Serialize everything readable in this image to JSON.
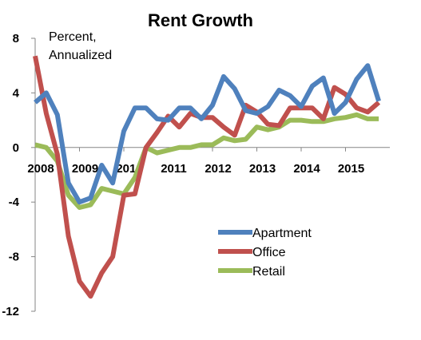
{
  "chart_data": {
    "type": "line",
    "title": "Rent Growth",
    "annotation": [
      "Percent,",
      "Annualized"
    ],
    "xlabel": "",
    "ylabel": "",
    "ylim": [
      -12,
      8
    ],
    "yticks": [
      8,
      4,
      0,
      -4,
      -8,
      -12
    ],
    "xlim": [
      2008,
      2016
    ],
    "xticks": [
      2008,
      2009,
      2010,
      2011,
      2012,
      2013,
      2014,
      2015
    ],
    "legend_position": "bottom-center",
    "grid": false,
    "series": [
      {
        "name": "Apartment",
        "color": "#4F81BD",
        "x": [
          2008.0,
          2008.25,
          2008.5,
          2008.75,
          2009.0,
          2009.25,
          2009.5,
          2009.75,
          2010.0,
          2010.25,
          2010.5,
          2010.75,
          2011.0,
          2011.25,
          2011.5,
          2011.75,
          2012.0,
          2012.25,
          2012.5,
          2012.75,
          2013.0,
          2013.25,
          2013.5,
          2013.75,
          2014.0,
          2014.25,
          2014.5,
          2014.75,
          2015.0,
          2015.25,
          2015.5,
          2015.75
        ],
        "values": [
          3.3,
          4.0,
          2.4,
          -2.6,
          -4.0,
          -3.7,
          -1.3,
          -2.6,
          1.2,
          2.9,
          2.9,
          2.1,
          2.0,
          2.9,
          2.9,
          2.1,
          3.1,
          5.2,
          4.3,
          2.7,
          2.5,
          3.0,
          4.2,
          3.8,
          3.0,
          4.5,
          5.1,
          2.5,
          3.3,
          5.0,
          6.0,
          3.4
        ]
      },
      {
        "name": "Office",
        "color": "#C0504D",
        "x": [
          2008.0,
          2008.25,
          2008.5,
          2008.75,
          2009.0,
          2009.25,
          2009.5,
          2009.75,
          2010.0,
          2010.25,
          2010.5,
          2010.75,
          2011.0,
          2011.25,
          2011.5,
          2011.75,
          2012.0,
          2012.25,
          2012.5,
          2012.75,
          2013.0,
          2013.25,
          2013.5,
          2013.75,
          2014.0,
          2014.25,
          2014.5,
          2014.75,
          2015.0,
          2015.25,
          2015.5,
          2015.75
        ],
        "values": [
          6.7,
          2.5,
          -0.5,
          -6.5,
          -9.8,
          -10.9,
          -9.2,
          -8.0,
          -3.5,
          -3.4,
          0.0,
          1.1,
          2.3,
          1.5,
          2.5,
          2.2,
          2.2,
          1.5,
          0.9,
          3.1,
          2.6,
          1.7,
          1.6,
          2.9,
          2.9,
          2.9,
          2.1,
          4.4,
          3.9,
          2.9,
          2.6,
          3.3
        ]
      },
      {
        "name": "Retail",
        "color": "#9BBB59",
        "x": [
          2008.0,
          2008.25,
          2008.5,
          2008.75,
          2009.0,
          2009.25,
          2009.5,
          2009.75,
          2010.0,
          2010.25,
          2010.5,
          2010.75,
          2011.0,
          2011.25,
          2011.5,
          2011.75,
          2012.0,
          2012.25,
          2012.5,
          2012.75,
          2013.0,
          2013.25,
          2013.5,
          2013.75,
          2014.0,
          2014.25,
          2014.5,
          2014.75,
          2015.0,
          2015.25,
          2015.5,
          2015.75
        ],
        "values": [
          0.2,
          0.0,
          -1.0,
          -3.5,
          -4.4,
          -4.2,
          -3.0,
          -3.2,
          -3.4,
          -2.2,
          0.0,
          -0.4,
          -0.2,
          0.0,
          0.0,
          0.2,
          0.2,
          0.7,
          0.5,
          0.6,
          1.5,
          1.3,
          1.5,
          2.0,
          2.0,
          1.9,
          1.9,
          2.1,
          2.2,
          2.4,
          2.1,
          2.1
        ]
      }
    ]
  }
}
